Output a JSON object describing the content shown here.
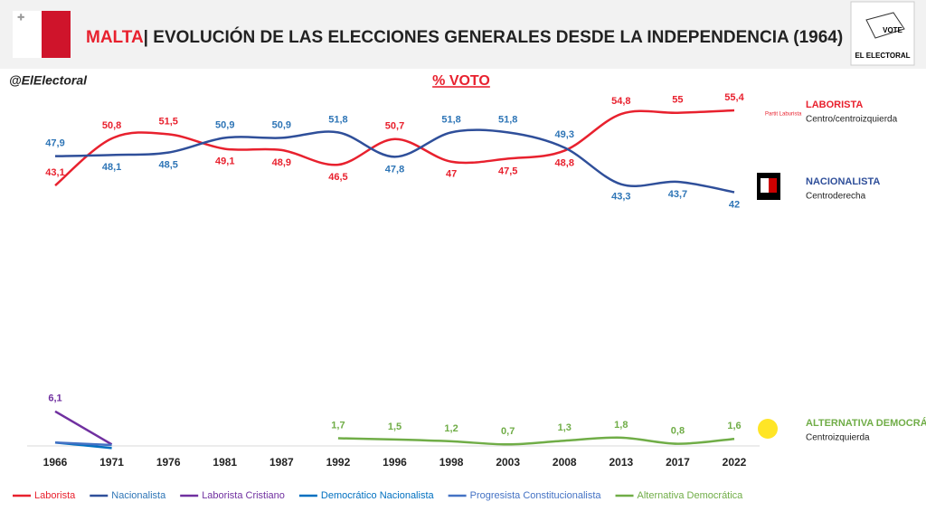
{
  "header": {
    "country": "MALTA",
    "title": "| EVOLUCIÓN DE LAS ELECCIONES GENERALES DESDE LA INDEPENDENCIA (1964)",
    "logo_vote": "VOTE",
    "logo_name": "EL ELECTORAL"
  },
  "handle": "@ElElectoral",
  "chart_data": {
    "type": "line",
    "subtitle": "% VOTO",
    "categories": [
      "1966",
      "1971",
      "1976",
      "1981",
      "1987",
      "1992",
      "1996",
      "1998",
      "2003",
      "2008",
      "2013",
      "2017",
      "2022"
    ],
    "ylim": [
      0,
      60
    ],
    "series": [
      {
        "name": "Laborista",
        "color": "#e8212e",
        "label_color": "#e8212e",
        "values": [
          43.1,
          50.8,
          51.5,
          49.1,
          48.9,
          46.5,
          50.7,
          47,
          47.5,
          48.8,
          54.8,
          55,
          55.4
        ],
        "value_labels": [
          "43,1",
          "50,8",
          "51,5",
          "49,1",
          "48,9",
          "46,5",
          "50,7",
          "47",
          "47,5",
          "48,8",
          "54,8",
          "55",
          "55,4"
        ]
      },
      {
        "name": "Nacionalista",
        "color": "#2f4f9a",
        "label_color": "#2e75b6",
        "values": [
          47.9,
          48.1,
          48.5,
          50.9,
          50.9,
          51.8,
          47.8,
          51.8,
          51.8,
          49.3,
          43.3,
          43.7,
          42
        ],
        "value_labels": [
          "47,9",
          "48,1",
          "48,5",
          "50,9",
          "50,9",
          "51,8",
          "47,8",
          "51,8",
          "51,8",
          "49,3",
          "43,3",
          "43,7",
          "42"
        ]
      },
      {
        "name": "Laborista Cristiano",
        "color": "#7030a0",
        "label_color": "#7030a0",
        "values": [
          6.1,
          0.7,
          null,
          null,
          null,
          null,
          null,
          null,
          null,
          null,
          null,
          null,
          null
        ],
        "value_labels": [
          "6,1",
          null,
          null,
          null,
          null,
          null,
          null,
          null,
          null,
          null,
          null,
          null,
          null
        ]
      },
      {
        "name": "Democrático Nacionalista",
        "color": "#0070c0",
        "values": [
          1.0,
          0.1,
          null,
          null,
          null,
          null,
          null,
          null,
          null,
          null,
          null,
          null,
          null
        ]
      },
      {
        "name": "Progresista Constitucionalista",
        "color": "#4472c4",
        "values": [
          1.0,
          0.6,
          null,
          null,
          null,
          null,
          null,
          null,
          null,
          null,
          null,
          null,
          null
        ]
      },
      {
        "name": "Alternativa Democrática",
        "color": "#70ad47",
        "label_color": "#70ad47",
        "values": [
          null,
          null,
          null,
          null,
          null,
          1.7,
          1.5,
          1.2,
          0.7,
          1.3,
          1.8,
          0.8,
          1.6
        ],
        "value_labels": [
          null,
          null,
          null,
          null,
          null,
          "1,7",
          "1,5",
          "1,2",
          "0,7",
          "1,3",
          "1,8",
          "0,8",
          "1,6"
        ]
      }
    ],
    "annotations": [
      {
        "name": "LABORISTA",
        "desc": "Centro/centroizquierda",
        "color": "#e8212e",
        "logo": "Partit Laburista"
      },
      {
        "name": "NACIONALISTA",
        "desc": "Centroderecha",
        "color": "#2f4f9a"
      },
      {
        "name": "ALTERNATIVA DEMOCRÁTICA",
        "desc": "Centroizquierda",
        "color": "#70ad47"
      }
    ]
  }
}
